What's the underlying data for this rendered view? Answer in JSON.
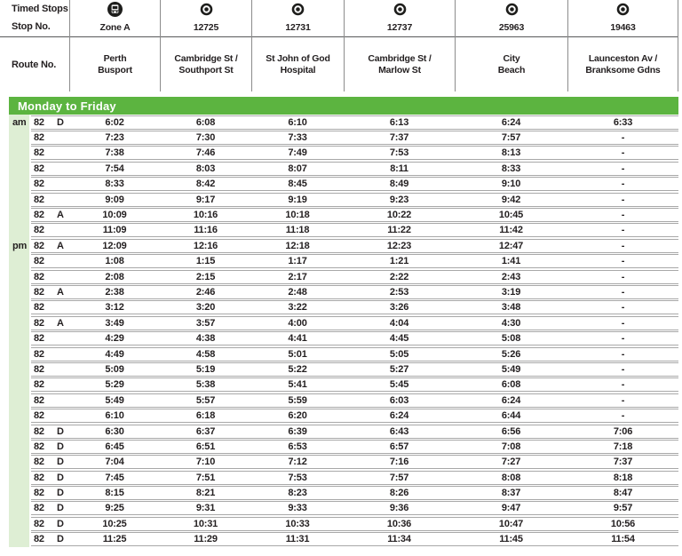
{
  "table": {
    "corner": {
      "timed_stops_label": "Timed Stops",
      "stop_no_label": "Stop No.",
      "route_no_label": "Route No."
    },
    "columns": [
      {
        "icon": "bus-icon",
        "stop_no": "Zone A",
        "name": [
          "Perth",
          "Busport"
        ]
      },
      {
        "icon": "timing-point-icon",
        "stop_no": "12725",
        "name": [
          "Cambridge St /",
          "Southport St"
        ]
      },
      {
        "icon": "timing-point-icon",
        "stop_no": "12731",
        "name": [
          "St John of God",
          "Hospital"
        ]
      },
      {
        "icon": "timing-point-icon",
        "stop_no": "12737",
        "name": [
          "Cambridge St /",
          "Marlow St"
        ]
      },
      {
        "icon": "timing-point-icon",
        "stop_no": "25963",
        "name": [
          "City",
          "Beach"
        ]
      },
      {
        "icon": "timing-point-icon",
        "stop_no": "19463",
        "name": [
          "Launceston Av /",
          "Branksome Gdns"
        ]
      }
    ],
    "section": {
      "title": "Monday to Friday"
    },
    "rows": [
      {
        "period": "am",
        "route": "82",
        "note": "D",
        "times": [
          "6:02",
          "6:08",
          "6:10",
          "6:13",
          "6:24",
          "6:33"
        ]
      },
      {
        "period": "",
        "route": "82",
        "note": "",
        "times": [
          "7:23",
          "7:30",
          "7:33",
          "7:37",
          "7:57",
          "-"
        ]
      },
      {
        "period": "",
        "route": "82",
        "note": "",
        "times": [
          "7:38",
          "7:46",
          "7:49",
          "7:53",
          "8:13",
          "-"
        ]
      },
      {
        "period": "",
        "route": "82",
        "note": "",
        "times": [
          "7:54",
          "8:03",
          "8:07",
          "8:11",
          "8:33",
          "-"
        ]
      },
      {
        "period": "",
        "route": "82",
        "note": "",
        "times": [
          "8:33",
          "8:42",
          "8:45",
          "8:49",
          "9:10",
          "-"
        ]
      },
      {
        "period": "",
        "route": "82",
        "note": "",
        "times": [
          "9:09",
          "9:17",
          "9:19",
          "9:23",
          "9:42",
          "-"
        ]
      },
      {
        "period": "",
        "route": "82",
        "note": "A",
        "times": [
          "10:09",
          "10:16",
          "10:18",
          "10:22",
          "10:45",
          "-"
        ]
      },
      {
        "period": "",
        "route": "82",
        "note": "",
        "times": [
          "11:09",
          "11:16",
          "11:18",
          "11:22",
          "11:42",
          "-"
        ]
      },
      {
        "period": "pm",
        "route": "82",
        "note": "A",
        "times": [
          "12:09",
          "12:16",
          "12:18",
          "12:23",
          "12:47",
          "-"
        ]
      },
      {
        "period": "",
        "route": "82",
        "note": "",
        "times": [
          "1:08",
          "1:15",
          "1:17",
          "1:21",
          "1:41",
          "-"
        ]
      },
      {
        "period": "",
        "route": "82",
        "note": "",
        "times": [
          "2:08",
          "2:15",
          "2:17",
          "2:22",
          "2:43",
          "-"
        ]
      },
      {
        "period": "",
        "route": "82",
        "note": "A",
        "times": [
          "2:38",
          "2:46",
          "2:48",
          "2:53",
          "3:19",
          "-"
        ]
      },
      {
        "period": "",
        "route": "82",
        "note": "",
        "times": [
          "3:12",
          "3:20",
          "3:22",
          "3:26",
          "3:48",
          "-"
        ]
      },
      {
        "period": "",
        "route": "82",
        "note": "A",
        "times": [
          "3:49",
          "3:57",
          "4:00",
          "4:04",
          "4:30",
          "-"
        ]
      },
      {
        "period": "",
        "route": "82",
        "note": "",
        "times": [
          "4:29",
          "4:38",
          "4:41",
          "4:45",
          "5:08",
          "-"
        ]
      },
      {
        "period": "",
        "route": "82",
        "note": "",
        "times": [
          "4:49",
          "4:58",
          "5:01",
          "5:05",
          "5:26",
          "-"
        ]
      },
      {
        "period": "",
        "route": "82",
        "note": "",
        "times": [
          "5:09",
          "5:19",
          "5:22",
          "5:27",
          "5:49",
          "-"
        ]
      },
      {
        "period": "",
        "route": "82",
        "note": "",
        "times": [
          "5:29",
          "5:38",
          "5:41",
          "5:45",
          "6:08",
          "-"
        ]
      },
      {
        "period": "",
        "route": "82",
        "note": "",
        "times": [
          "5:49",
          "5:57",
          "5:59",
          "6:03",
          "6:24",
          "-"
        ]
      },
      {
        "period": "",
        "route": "82",
        "note": "",
        "times": [
          "6:10",
          "6:18",
          "6:20",
          "6:24",
          "6:44",
          "-"
        ]
      },
      {
        "period": "",
        "route": "82",
        "note": "D",
        "times": [
          "6:30",
          "6:37",
          "6:39",
          "6:43",
          "6:56",
          "7:06"
        ]
      },
      {
        "period": "",
        "route": "82",
        "note": "D",
        "times": [
          "6:45",
          "6:51",
          "6:53",
          "6:57",
          "7:08",
          "7:18"
        ]
      },
      {
        "period": "",
        "route": "82",
        "note": "D",
        "times": [
          "7:04",
          "7:10",
          "7:12",
          "7:16",
          "7:27",
          "7:37"
        ]
      },
      {
        "period": "",
        "route": "82",
        "note": "D",
        "times": [
          "7:45",
          "7:51",
          "7:53",
          "7:57",
          "8:08",
          "8:18"
        ]
      },
      {
        "period": "",
        "route": "82",
        "note": "D",
        "times": [
          "8:15",
          "8:21",
          "8:23",
          "8:26",
          "8:37",
          "8:47"
        ]
      },
      {
        "period": "",
        "route": "82",
        "note": "D",
        "times": [
          "9:25",
          "9:31",
          "9:33",
          "9:36",
          "9:47",
          "9:57"
        ]
      },
      {
        "period": "",
        "route": "82",
        "note": "D",
        "times": [
          "10:25",
          "10:31",
          "10:33",
          "10:36",
          "10:47",
          "10:56"
        ]
      },
      {
        "period": "",
        "route": "82",
        "note": "D",
        "times": [
          "11:25",
          "11:29",
          "11:31",
          "11:34",
          "11:45",
          "11:54"
        ]
      }
    ],
    "colors": {
      "banner_green": "#5cb440",
      "period_strip_green": "#deeed4"
    }
  }
}
